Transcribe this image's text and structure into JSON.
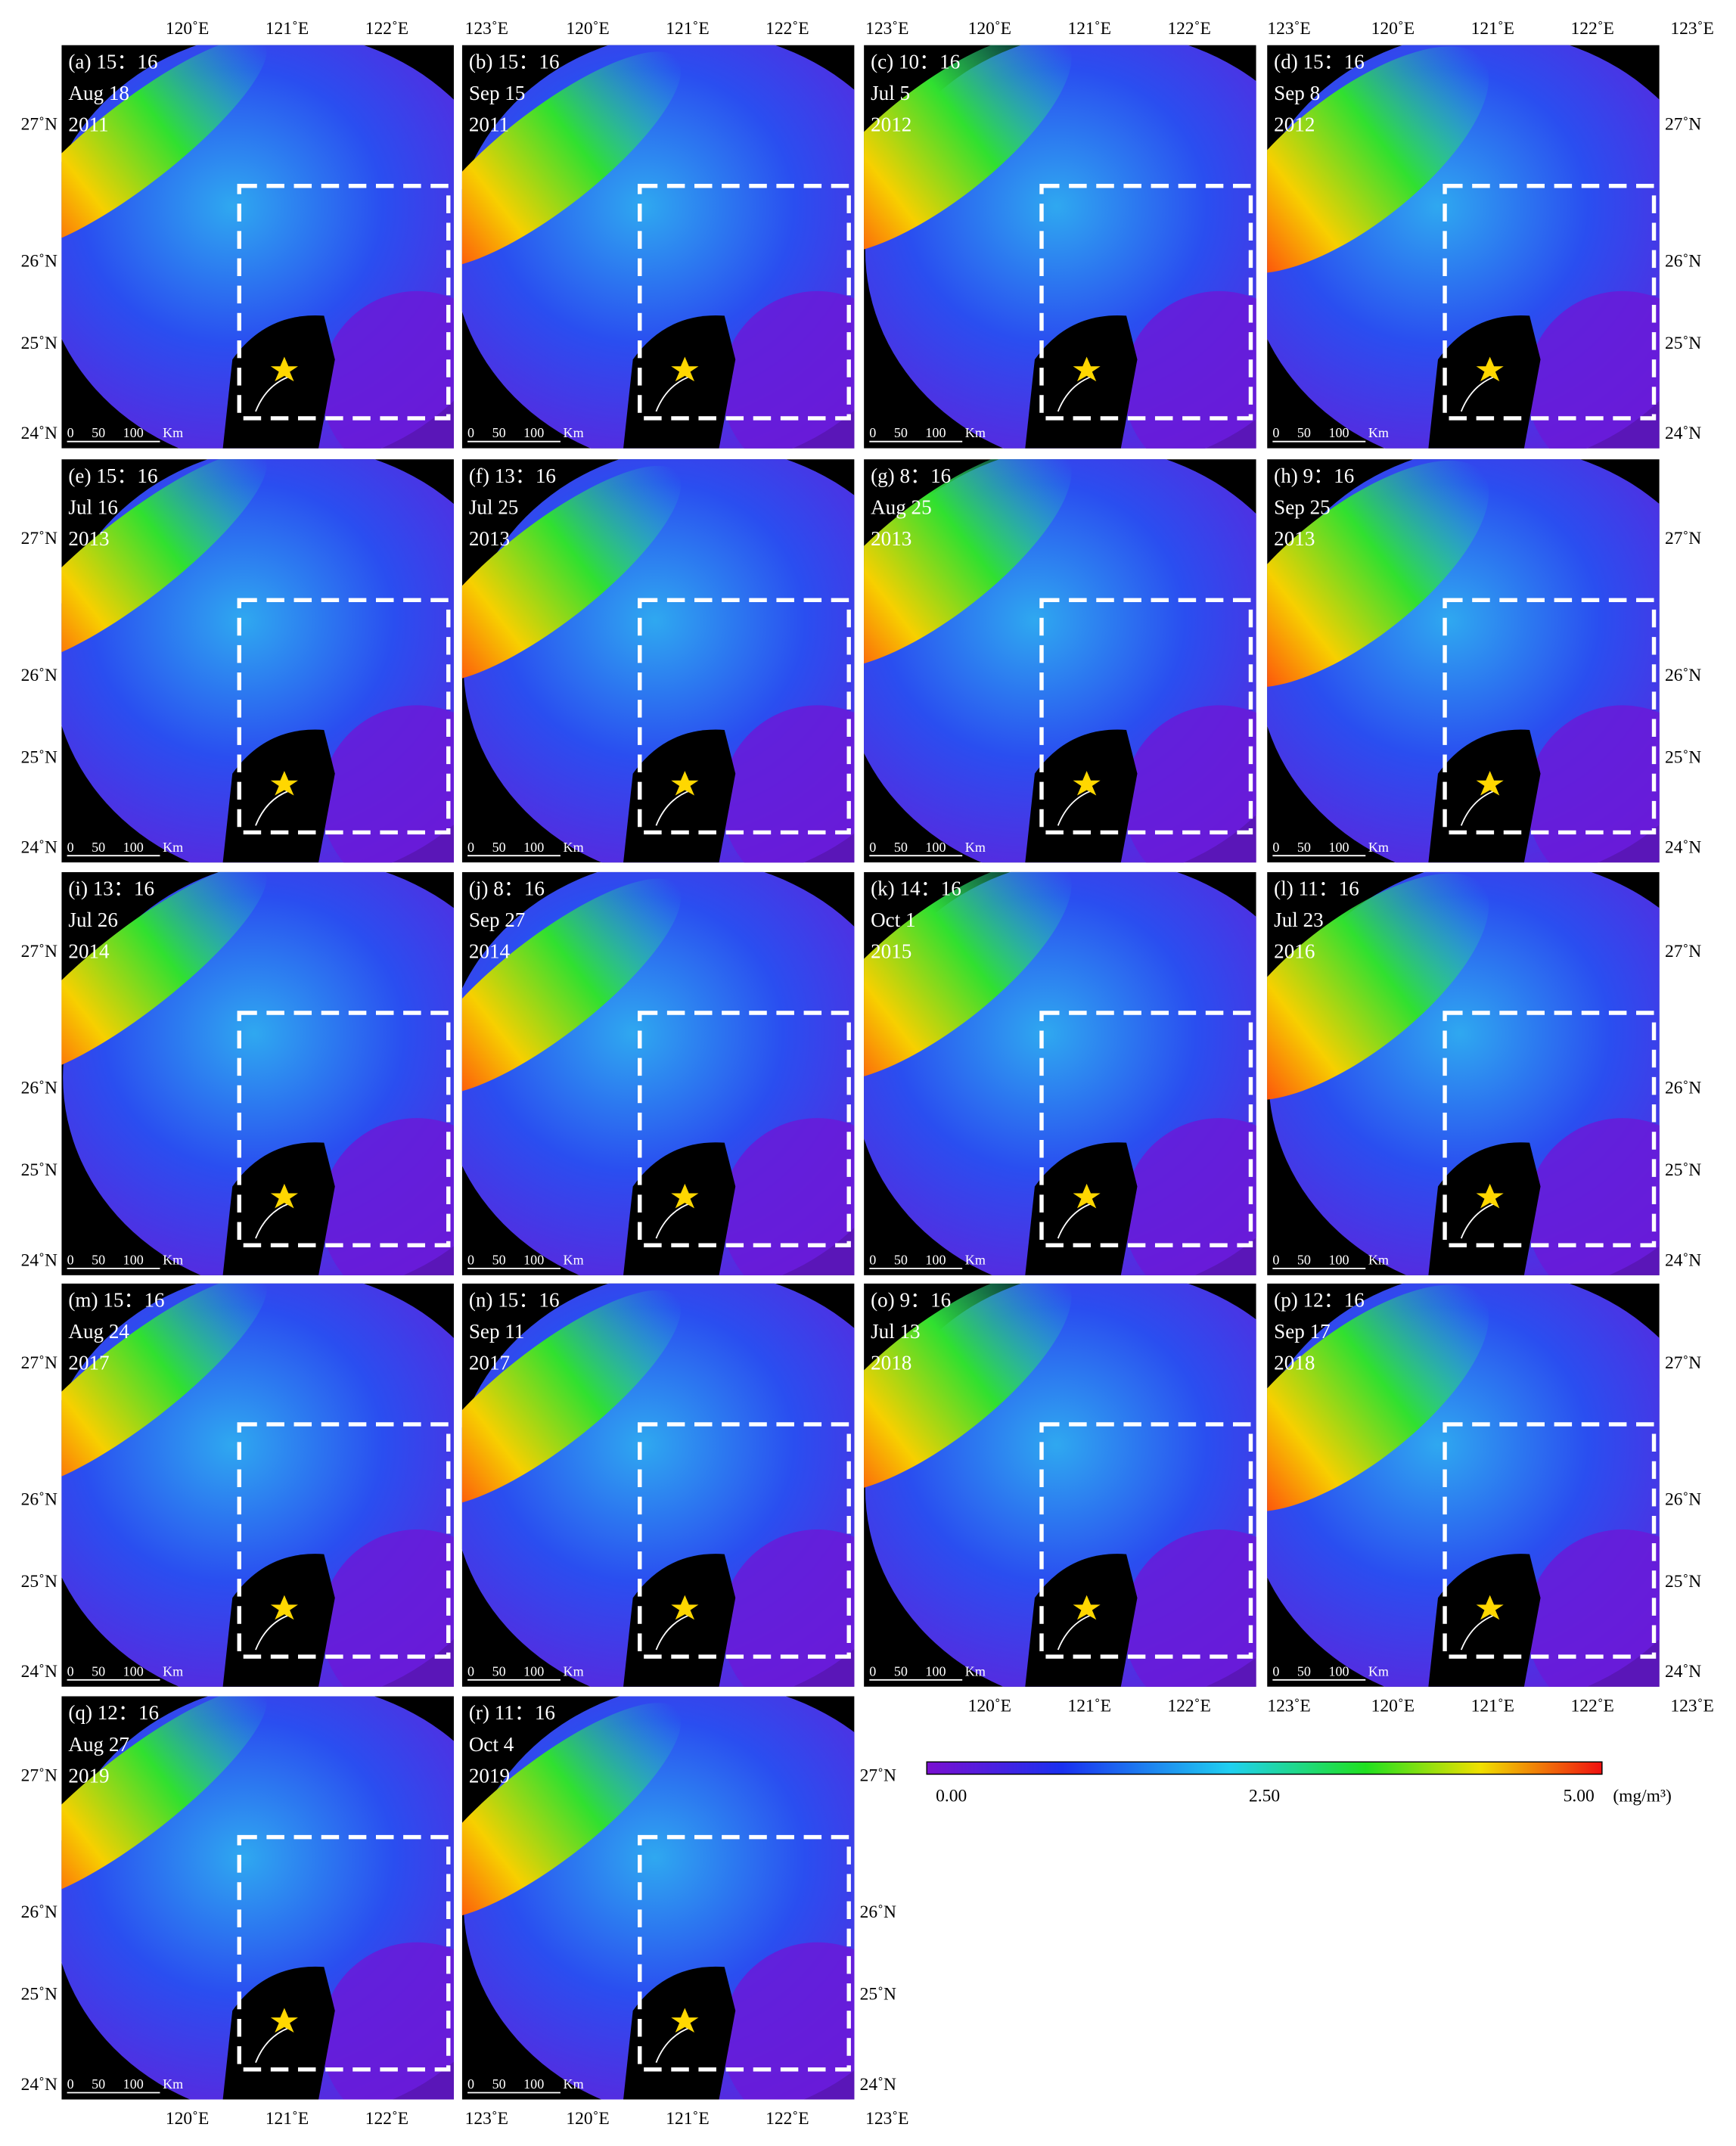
{
  "lon_labels": [
    "120˚E",
    "121˚E",
    "122˚E",
    "123˚E"
  ],
  "lat_labels": [
    "27˚N",
    "26˚N",
    "25˚N",
    "24˚N"
  ],
  "scale_bar": [
    "0",
    "50",
    "100",
    "Km"
  ],
  "colorbar": {
    "labels": [
      "0.00",
      "2.50",
      "5.00"
    ],
    "unit": "(mg/m³)"
  },
  "panels": [
    {
      "label": "(a) 15：16",
      "date": "Aug 18",
      "year": "2011"
    },
    {
      "label": "(b) 15：16",
      "date": "Sep 15",
      "year": "2011"
    },
    {
      "label": "(c) 10：16",
      "date": "Jul 5",
      "year": "2012"
    },
    {
      "label": "(d) 15：16",
      "date": "Sep 8",
      "year": "2012"
    },
    {
      "label": "(e) 15：16",
      "date": "Jul 16",
      "year": "2013"
    },
    {
      "label": "(f) 13：16",
      "date": "Jul 25",
      "year": "2013"
    },
    {
      "label": "(g) 8：16",
      "date": "Aug 25",
      "year": "2013"
    },
    {
      "label": "(h) 9：16",
      "date": "Sep 25",
      "year": "2013"
    },
    {
      "label": "(i) 13：16",
      "date": "Jul 26",
      "year": "2014"
    },
    {
      "label": "(j) 8：16",
      "date": "Sep 27",
      "year": "2014"
    },
    {
      "label": "(k) 14：16",
      "date": "Oct 1",
      "year": "2015"
    },
    {
      "label": "(l) 11：16",
      "date": "Jul 23",
      "year": "2016"
    },
    {
      "label": "(m) 15：16",
      "date": "Aug 24",
      "year": "2017"
    },
    {
      "label": "(n) 15：16",
      "date": "Sep 11",
      "year": "2017"
    },
    {
      "label": "(o) 9：16",
      "date": "Jul 13",
      "year": "2018"
    },
    {
      "label": "(p) 12：16",
      "date": "Sep 17",
      "year": "2018"
    },
    {
      "label": "(q) 12：16",
      "date": "Aug 27",
      "year": "2019"
    },
    {
      "label": "(r) 11：16",
      "date": "Oct 4",
      "year": "2019"
    }
  ]
}
